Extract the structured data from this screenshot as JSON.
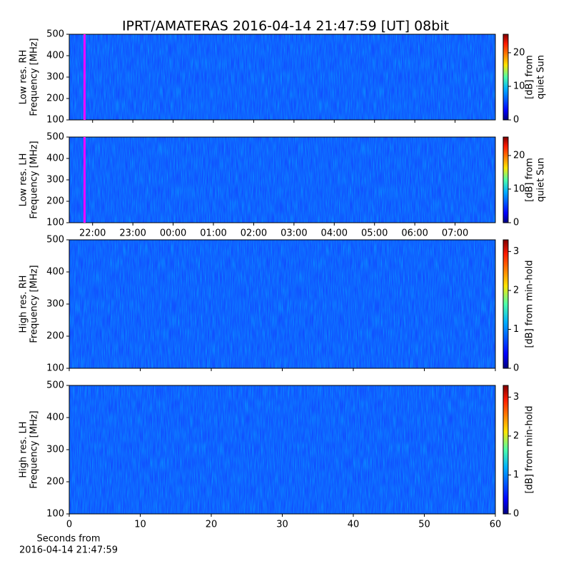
{
  "title": "IPRT/AMATERAS 2016-04-14 21:47:59 [UT]   08bit",
  "xlabel": [
    "Seconds from",
    "2016-04-14 21:47:59"
  ],
  "chart_data": [
    {
      "type": "spectrogram",
      "ylabel": [
        "Low res. RH",
        "Frequency [MHz]"
      ],
      "ylim": [
        100,
        500
      ],
      "yticks": [
        100,
        200,
        300,
        400,
        500
      ],
      "xlim": [
        21.42,
        32.0
      ],
      "marker_x": 21.8,
      "marker_color": "#ff00ff",
      "colorbar": {
        "label": [
          "[dB] from",
          "quiet Sun"
        ],
        "lim": [
          0,
          25.5
        ],
        "ticks": [
          0,
          10,
          20
        ]
      }
    },
    {
      "type": "spectrogram",
      "ylabel": [
        "Low res. LH",
        "Frequency [MHz]"
      ],
      "ylim": [
        100,
        500
      ],
      "yticks": [
        100,
        200,
        300,
        400,
        500
      ],
      "xlim": [
        21.42,
        32.0
      ],
      "xticks": [
        {
          "value": 22,
          "label": "22:00"
        },
        {
          "value": 23,
          "label": "23:00"
        },
        {
          "value": 24,
          "label": "00:00"
        },
        {
          "value": 25,
          "label": "01:00"
        },
        {
          "value": 26,
          "label": "02:00"
        },
        {
          "value": 27,
          "label": "03:00"
        },
        {
          "value": 28,
          "label": "04:00"
        },
        {
          "value": 29,
          "label": "05:00"
        },
        {
          "value": 30,
          "label": "06:00"
        },
        {
          "value": 31,
          "label": "07:00"
        }
      ],
      "marker_x": 21.8,
      "marker_color": "#ff00ff",
      "colorbar": {
        "label": [
          "[dB] from",
          "quiet Sun"
        ],
        "lim": [
          0,
          25.5
        ],
        "ticks": [
          0,
          10,
          20
        ]
      }
    },
    {
      "type": "spectrogram",
      "ylabel": [
        "High res. RH",
        "Frequency [MHz]"
      ],
      "ylim": [
        100,
        500
      ],
      "yticks": [
        100,
        200,
        300,
        400,
        500
      ],
      "xlim": [
        0,
        60
      ],
      "colorbar": {
        "label": [
          "[dB] from min-hold"
        ],
        "lim": [
          0,
          3.3
        ],
        "ticks": [
          0,
          1,
          2,
          3
        ]
      }
    },
    {
      "type": "spectrogram",
      "ylabel": [
        "High res. LH",
        "Frequency [MHz]"
      ],
      "ylim": [
        100,
        500
      ],
      "yticks": [
        100,
        200,
        300,
        400,
        500
      ],
      "xlim": [
        0,
        60
      ],
      "xticks": [
        0,
        10,
        20,
        30,
        40,
        50,
        60
      ],
      "colorbar": {
        "label": [
          "[dB] from min-hold"
        ],
        "lim": [
          0,
          3.3
        ],
        "ticks": [
          0,
          1,
          2,
          3
        ]
      }
    }
  ]
}
